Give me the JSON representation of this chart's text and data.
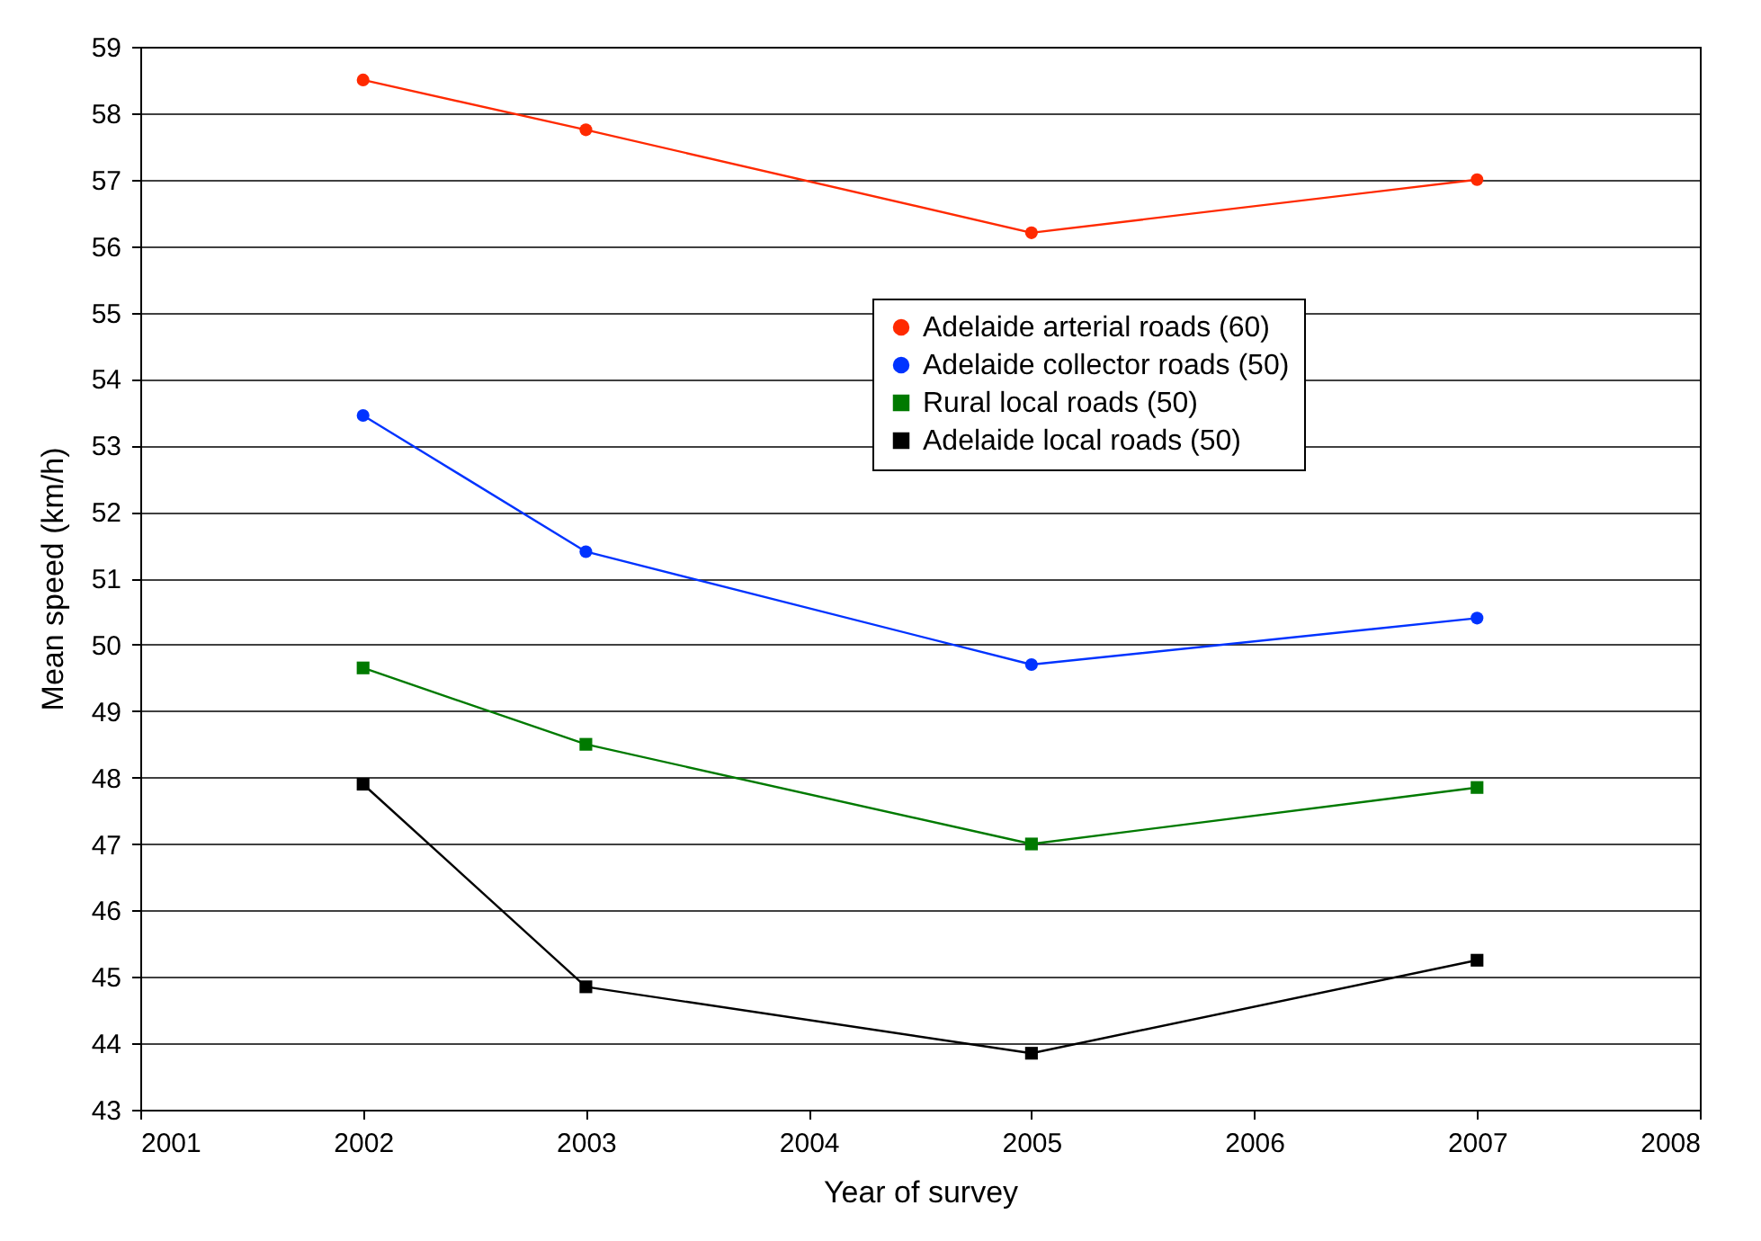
{
  "chart_data": {
    "type": "line",
    "xlabel": "Year of survey",
    "ylabel": "Mean speed (km/h)",
    "x": [
      2002,
      2003,
      2005,
      2007
    ],
    "series": [
      {
        "name": "Adelaide arterial roads (60)",
        "color": "#ff2a00",
        "marker": "circle",
        "values": [
          58.5,
          57.75,
          56.2,
          57.0
        ]
      },
      {
        "name": "Adelaide collector roads (50)",
        "color": "#0033ff",
        "marker": "circle",
        "values": [
          53.45,
          51.4,
          49.7,
          50.4
        ]
      },
      {
        "name": "Rural local roads (50)",
        "color": "#007a00",
        "marker": "square",
        "values": [
          49.65,
          48.5,
          47.0,
          47.85
        ]
      },
      {
        "name": "Adelaide local roads (50)",
        "color": "#000000",
        "marker": "square",
        "values": [
          47.9,
          44.85,
          43.85,
          45.25
        ]
      }
    ],
    "xlim": [
      2001,
      2008
    ],
    "xticks": [
      2001,
      2002,
      2003,
      2004,
      2005,
      2006,
      2007,
      2008
    ],
    "ylim": [
      43,
      59
    ],
    "yticks": [
      43,
      44,
      45,
      46,
      47,
      48,
      49,
      50,
      51,
      52,
      53,
      54,
      55,
      56,
      57,
      58,
      59
    ],
    "grid": "y",
    "legend": "right"
  }
}
